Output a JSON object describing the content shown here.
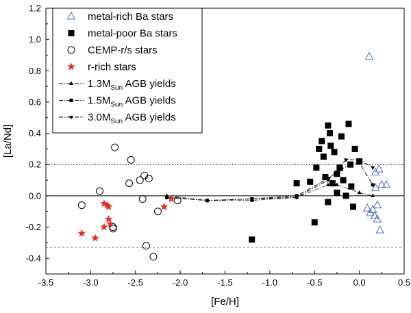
{
  "chart_data": {
    "type": "scatter",
    "title": "",
    "xlabel": "[Fe/H]",
    "ylabel": "[La/Nd]",
    "xlim": [
      -3.5,
      0.5
    ],
    "ylim": [
      -0.5,
      1.2
    ],
    "xticks": [
      -3.5,
      -3.0,
      -2.5,
      -2.0,
      -1.5,
      -1.0,
      -0.5,
      0.0,
      0.5
    ],
    "xtick_labels": [
      "-3.5",
      "-3.0",
      "-2.5",
      "-2.0",
      "-1.5",
      "-1.0",
      "-0.5",
      "0.0",
      "0.5"
    ],
    "yticks": [
      -0.4,
      -0.2,
      0.0,
      0.2,
      0.4,
      0.6,
      0.8,
      1.0,
      1.2
    ],
    "ytick_labels": [
      "-0.4",
      "-0.2",
      "0.0",
      "0.2",
      "0.4",
      "0.6",
      "0.8",
      "1.0",
      "1.2"
    ],
    "reference_lines": [
      {
        "y": 0.0,
        "style": "solid",
        "color": "#000000"
      },
      {
        "y": 0.2,
        "style": "dotted",
        "color": "#000000"
      },
      {
        "y": -0.33,
        "style": "dashed",
        "color": "#999999"
      }
    ],
    "series": [
      {
        "name": "metal-rich Ba stars",
        "marker": "triangle-open",
        "color": "#4a6fb5",
        "points": [
          [
            0.11,
            0.89
          ],
          [
            0.09,
            -0.08
          ],
          [
            0.12,
            -0.11
          ],
          [
            0.15,
            -0.09
          ],
          [
            0.18,
            0.05
          ],
          [
            0.2,
            -0.06
          ],
          [
            0.22,
            0.17
          ],
          [
            0.17,
            -0.13
          ],
          [
            0.25,
            0.07
          ],
          [
            0.3,
            0.07
          ],
          [
            0.2,
            -0.15
          ],
          [
            0.23,
            -0.22
          ],
          [
            0.18,
            0.15
          ]
        ]
      },
      {
        "name": "metal-poor Ba stars",
        "marker": "square-filled",
        "color": "#000000",
        "points": [
          [
            -1.2,
            -0.28
          ],
          [
            -0.7,
            0.08
          ],
          [
            -0.55,
            0.09
          ],
          [
            -0.5,
            -0.17
          ],
          [
            -0.48,
            0.18
          ],
          [
            -0.45,
            0.3
          ],
          [
            -0.42,
            0.35
          ],
          [
            -0.4,
            0.25
          ],
          [
            -0.38,
            0.12
          ],
          [
            -0.35,
            0.45
          ],
          [
            -0.33,
            0.4
          ],
          [
            -0.32,
            0.32
          ],
          [
            -0.3,
            0.08
          ],
          [
            -0.28,
            0.28
          ],
          [
            -0.25,
            0.14
          ],
          [
            -0.22,
            0.18
          ],
          [
            -0.2,
            0.38
          ],
          [
            -0.18,
            0.1
          ],
          [
            -0.15,
            0.0
          ],
          [
            -0.12,
            0.46
          ],
          [
            -0.1,
            0.2
          ],
          [
            -0.09,
            0.06
          ],
          [
            -0.07,
            -0.07
          ],
          [
            -0.05,
            0.3
          ],
          [
            0.0,
            0.22
          ],
          [
            -0.35,
            -0.04
          ],
          [
            -0.25,
            0.02
          ]
        ]
      },
      {
        "name": "CEMP-r/s stars",
        "marker": "circle-open",
        "color": "#000000",
        "points": [
          [
            -3.1,
            -0.06
          ],
          [
            -2.9,
            0.03
          ],
          [
            -2.75,
            -0.2
          ],
          [
            -2.73,
            0.31
          ],
          [
            -2.57,
            0.08
          ],
          [
            -2.55,
            0.23
          ],
          [
            -2.45,
            0.1
          ],
          [
            -2.42,
            -0.02
          ],
          [
            -2.4,
            0.13
          ],
          [
            -2.38,
            -0.32
          ],
          [
            -2.35,
            0.11
          ],
          [
            -2.3,
            -0.39
          ],
          [
            -2.25,
            -0.1
          ],
          [
            -2.03,
            -0.03
          ],
          [
            -2.75,
            -0.21
          ]
        ]
      },
      {
        "name": "r-rich stars",
        "marker": "star-filled",
        "color": "#d9322a",
        "points": [
          [
            -3.1,
            -0.24
          ],
          [
            -2.95,
            -0.27
          ],
          [
            -2.85,
            -0.2
          ],
          [
            -2.85,
            -0.05
          ],
          [
            -2.82,
            -0.06
          ],
          [
            -2.8,
            -0.15
          ],
          [
            -2.78,
            -0.18
          ],
          [
            -2.8,
            -0.07
          ],
          [
            -2.18,
            -0.07
          ],
          [
            -2.1,
            -0.02
          ]
        ]
      },
      {
        "name": "1.3M_Sun AGB yields",
        "legend_main": "1.3M",
        "legend_sub": "Sun",
        "legend_tail": " AGB yields",
        "marker": "triangle-up-filled",
        "line": "dash-dot-light",
        "color": "#000000",
        "points": [
          [
            -2.15,
            0.0
          ],
          [
            -1.7,
            -0.03
          ],
          [
            -1.2,
            -0.03
          ],
          [
            -0.7,
            -0.01
          ],
          [
            -0.35,
            0.07
          ],
          [
            -0.25,
            0.07
          ],
          [
            0.0,
            0.02
          ],
          [
            0.15,
            0.0
          ]
        ]
      },
      {
        "name": "1.5M_Sun AGB yields",
        "legend_main": "1.5M",
        "legend_sub": "Sun",
        "legend_tail": " AGB yields",
        "marker": "square-filled-small",
        "line": "dash-dot",
        "color": "#000000",
        "points": [
          [
            -2.15,
            -0.01
          ],
          [
            -1.7,
            -0.03
          ],
          [
            -1.2,
            -0.02
          ],
          [
            -0.7,
            0.0
          ],
          [
            -0.35,
            0.11
          ],
          [
            -0.2,
            0.17
          ],
          [
            -0.1,
            0.2
          ],
          [
            0.0,
            0.21
          ],
          [
            0.15,
            0.07
          ]
        ]
      },
      {
        "name": "3.0M_Sun AGB yields",
        "legend_main": "3.0M",
        "legend_sub": "Sun",
        "legend_tail": " AGB yields",
        "marker": "triangle-down-filled",
        "line": "dash-dot",
        "color": "#000000",
        "points": [
          [
            -2.15,
            -0.01
          ],
          [
            -1.7,
            -0.03
          ],
          [
            -1.2,
            -0.02
          ],
          [
            -0.7,
            -0.01
          ],
          [
            -0.35,
            0.1
          ],
          [
            -0.15,
            0.23
          ],
          [
            0.0,
            0.23
          ],
          [
            0.15,
            0.18
          ]
        ]
      }
    ],
    "legend_position": "top-left"
  }
}
